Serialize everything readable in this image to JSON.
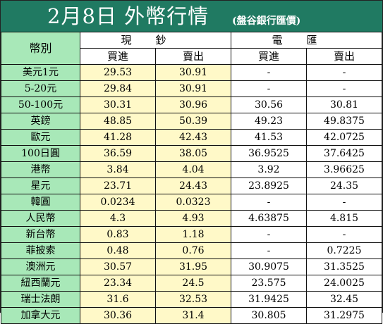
{
  "title": {
    "main": "2月8日 外幣行情",
    "sub": "(盤谷銀行匯價)"
  },
  "table": {
    "currency_header": "幣別",
    "group_cash": "現鈔",
    "group_telegraphic": "電匯",
    "buy_label": "買進",
    "sell_label": "賣出",
    "rows": [
      {
        "name": "美元1元",
        "cash_buy": "29.53",
        "cash_sell": "30.91",
        "tt_buy": "-",
        "tt_sell": "-"
      },
      {
        "name": "5-20元",
        "cash_buy": "29.84",
        "cash_sell": "30.91",
        "tt_buy": "-",
        "tt_sell": "-"
      },
      {
        "name": "50-100元",
        "cash_buy": "30.31",
        "cash_sell": "30.96",
        "tt_buy": "30.56",
        "tt_sell": "30.81"
      },
      {
        "name": "英鎊",
        "cash_buy": "48.85",
        "cash_sell": "50.39",
        "tt_buy": "49.23",
        "tt_sell": "49.8375"
      },
      {
        "name": "歐元",
        "cash_buy": "41.28",
        "cash_sell": "42.43",
        "tt_buy": "41.53",
        "tt_sell": "42.0725"
      },
      {
        "name": "100日圓",
        "cash_buy": "36.59",
        "cash_sell": "38.05",
        "tt_buy": "36.9525",
        "tt_sell": "37.6425"
      },
      {
        "name": "港幣",
        "cash_buy": "3.84",
        "cash_sell": "4.04",
        "tt_buy": "3.92",
        "tt_sell": "3.96625"
      },
      {
        "name": "星元",
        "cash_buy": "23.71",
        "cash_sell": "24.43",
        "tt_buy": "23.8925",
        "tt_sell": "24.35"
      },
      {
        "name": "韓圓",
        "cash_buy": "0.0234",
        "cash_sell": "0.0323",
        "tt_buy": "-",
        "tt_sell": "-"
      },
      {
        "name": "人民幣",
        "cash_buy": "4.3",
        "cash_sell": "4.93",
        "tt_buy": "4.63875",
        "tt_sell": "4.815"
      },
      {
        "name": "新台幣",
        "cash_buy": "0.83",
        "cash_sell": "1.18",
        "tt_buy": "-",
        "tt_sell": "-"
      },
      {
        "name": "菲披索",
        "cash_buy": "0.48",
        "cash_sell": "0.76",
        "tt_buy": "-",
        "tt_sell": "0.7225"
      },
      {
        "name": "澳洲元",
        "cash_buy": "30.57",
        "cash_sell": "31.95",
        "tt_buy": "30.9075",
        "tt_sell": "31.3525"
      },
      {
        "name": "紐西蘭元",
        "cash_buy": "23.34",
        "cash_sell": "24.5",
        "tt_buy": "23.575",
        "tt_sell": "24.0025"
      },
      {
        "name": "瑞士法朗",
        "cash_buy": "31.6",
        "cash_sell": "32.53",
        "tt_buy": "31.9425",
        "tt_sell": "32.45"
      },
      {
        "name": "加拿大元",
        "cash_buy": "30.36",
        "cash_sell": "31.4",
        "tt_buy": "30.805",
        "tt_sell": "31.2975"
      }
    ]
  },
  "colors": {
    "title_bg": "#207a62",
    "name_col_bg": "#a8e8b8",
    "cash_col_bg": "#fff9c8",
    "tt_col_bg": "#ffffff"
  }
}
